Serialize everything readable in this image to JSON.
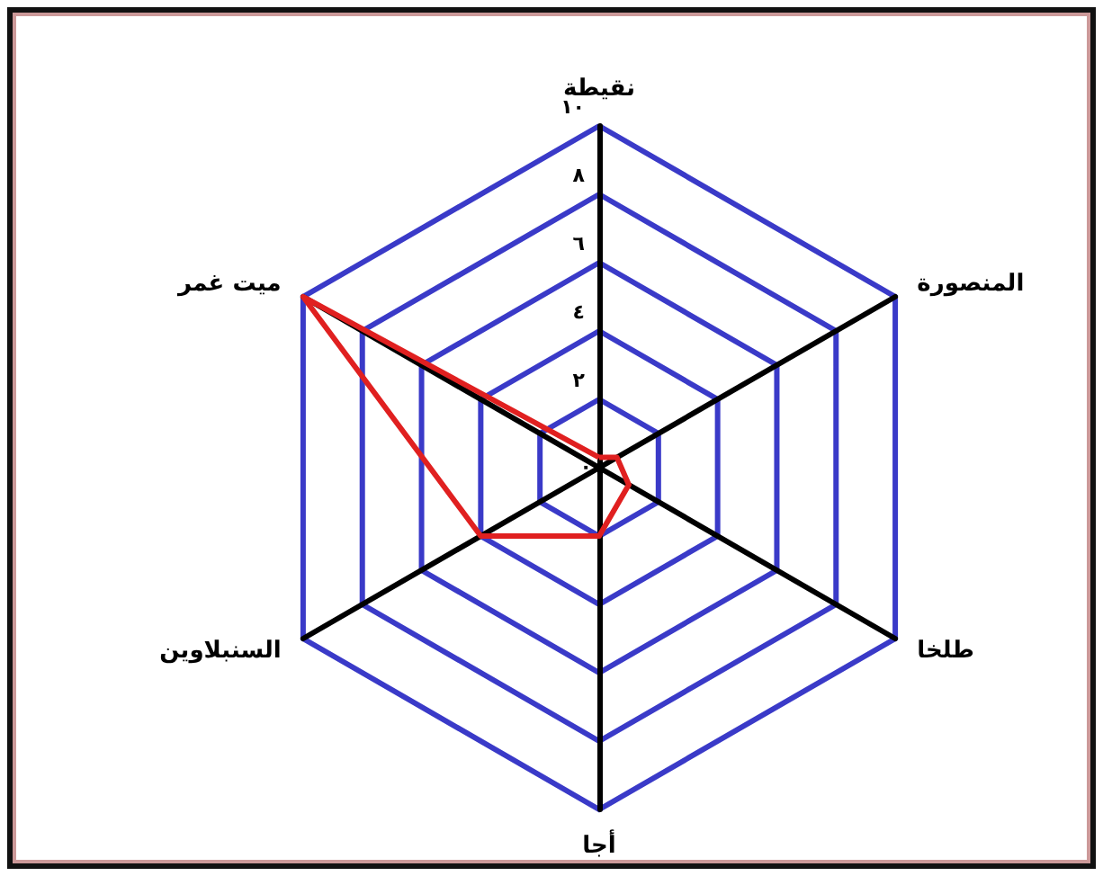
{
  "chart_data": {
    "type": "radar",
    "categories": [
      "نقيطة",
      "المنصورة",
      "طلخا",
      "أجا",
      "السنبلاوين",
      "ميت غمر"
    ],
    "series": [
      {
        "color": "#e02020",
        "values": [
          0.3,
          0.6,
          1,
          2,
          4,
          10
        ]
      }
    ],
    "ylim": [
      0,
      10
    ],
    "yticks": [
      {
        "value": 0,
        "label": "٠"
      },
      {
        "value": 2,
        "label": "٢"
      },
      {
        "value": 4,
        "label": "٤"
      },
      {
        "value": 6,
        "label": "٦"
      },
      {
        "value": 8,
        "label": "٨"
      },
      {
        "value": 10,
        "label": "١٠"
      }
    ],
    "grid": true,
    "marker": "none",
    "line_style": "solid"
  }
}
